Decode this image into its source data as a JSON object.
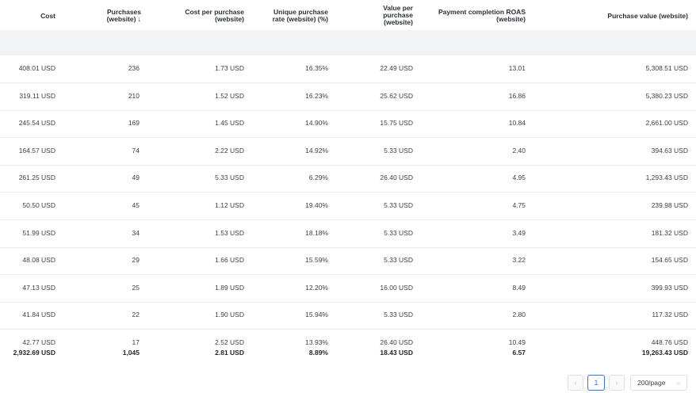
{
  "columns": [
    {
      "label": "Cost"
    },
    {
      "label": "Purchases\n(website)",
      "sort": "↓"
    },
    {
      "label": "Cost per purchase\n(website)"
    },
    {
      "label": "Unique purchase\nrate (website) (%)"
    },
    {
      "label": "Value per\npurchase\n(website)"
    },
    {
      "label": "Payment completion ROAS\n(website)"
    },
    {
      "label": "Purchase value (website)"
    }
  ],
  "rows": [
    [
      "408.01 USD",
      "236",
      "1.73 USD",
      "16.35%",
      "22.49 USD",
      "13.01",
      "5,308.51 USD"
    ],
    [
      "319.11 USD",
      "210",
      "1.52 USD",
      "16.23%",
      "25.62 USD",
      "16.86",
      "5,380.23 USD"
    ],
    [
      "245.54 USD",
      "169",
      "1.45 USD",
      "14.90%",
      "15.75 USD",
      "10.84",
      "2,661.00 USD"
    ],
    [
      "164.57 USD",
      "74",
      "2.22 USD",
      "14.92%",
      "5.33 USD",
      "2.40",
      "394.63 USD"
    ],
    [
      "261.25 USD",
      "49",
      "5.33 USD",
      "6.29%",
      "26.40 USD",
      "4.95",
      "1,293.43 USD"
    ],
    [
      "50.50 USD",
      "45",
      "1.12 USD",
      "19.40%",
      "5.33 USD",
      "4.75",
      "239.98 USD"
    ],
    [
      "51.99 USD",
      "34",
      "1.53 USD",
      "18.18%",
      "5.33 USD",
      "3.49",
      "181.32 USD"
    ],
    [
      "48.08 USD",
      "29",
      "1.66 USD",
      "15.59%",
      "5.33 USD",
      "3.22",
      "154.65 USD"
    ],
    [
      "47.13 USD",
      "25",
      "1.89 USD",
      "12.20%",
      "16.00 USD",
      "8.49",
      "399.93 USD"
    ],
    [
      "41.84 USD",
      "22",
      "1.90 USD",
      "15.94%",
      "5.33 USD",
      "2.80",
      "117.32 USD"
    ],
    [
      "42.77 USD",
      "17",
      "2.52 USD",
      "13.93%",
      "26.40 USD",
      "10.49",
      "448.76 USD"
    ]
  ],
  "totals": [
    "2,932.69 USD",
    "1,045",
    "2.81 USD",
    "8.89%",
    "18.43 USD",
    "6.57",
    "19,263.43 USD"
  ],
  "pagination": {
    "prev": "‹",
    "current_page": "1",
    "next": "›",
    "page_size": "200/page",
    "chevron": "⌵"
  },
  "colors": {
    "accent": "#3370ff",
    "band": "#f2f3f5",
    "divider": "#e9ebee"
  }
}
